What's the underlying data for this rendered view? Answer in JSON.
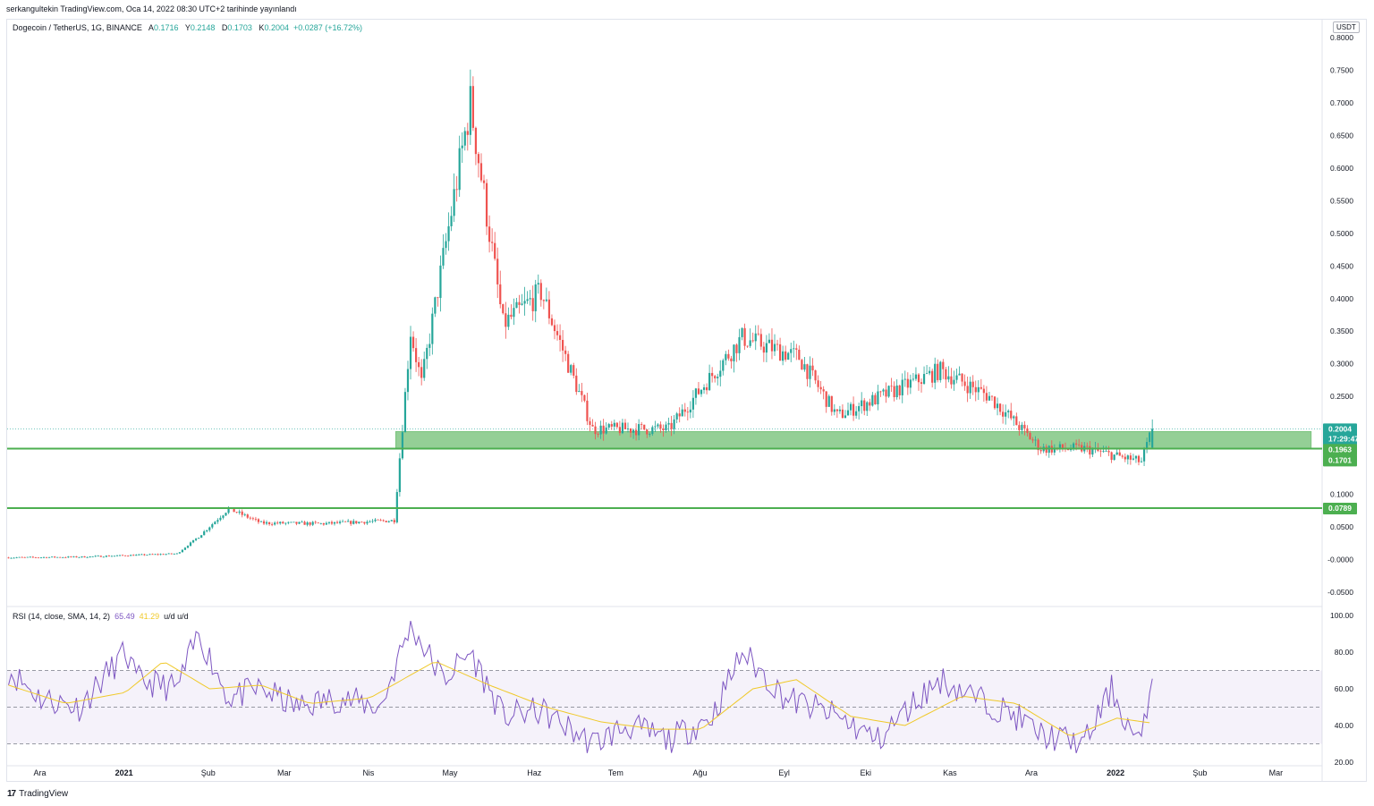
{
  "header": {
    "published": "serkangultekin TradingView.com, Oca 14, 2022 08:30 UTC+2 tarihinde yayınlandı",
    "symbol": "Dogecoin / TetherUS, 1G, BINANCE",
    "open_label": "A",
    "open": "0.1716",
    "high_label": "Y",
    "high": "0.2148",
    "low_label": "D",
    "low": "0.1703",
    "close_label": "K",
    "close": "0.2004",
    "change": "+0.0287 (+16.72%)"
  },
  "currency_button": "USDT",
  "rsi_legend": {
    "label": "RSI (14, close, SMA, 14, 2)",
    "rsi_value": "65.49",
    "sma_value": "41.29",
    "extra": "u/d  u/d"
  },
  "badges": {
    "price": "0.2004",
    "countdown": "17:29:47",
    "zone_top": "0.1963",
    "zone_bottom": "0.1701",
    "support": "0.0789"
  },
  "footer": {
    "brand": "TradingView",
    "logo_text": "17"
  },
  "colors": {
    "up": "#26a69a",
    "down": "#ef5350",
    "zone": "#81c784",
    "line": "#4caf50",
    "rsi": "#7e57c2",
    "sma": "#f0c929"
  },
  "chart_data": [
    {
      "type": "candlestick",
      "title": "Dogecoin / TetherUS, 1G, BINANCE",
      "ylim": [
        -0.05,
        0.8
      ],
      "y_ticks": [
        "0.8000",
        "0.7500",
        "0.7000",
        "0.6500",
        "0.6000",
        "0.5500",
        "0.5000",
        "0.4500",
        "0.4000",
        "0.3500",
        "0.3000",
        "0.2500",
        "0.1000",
        "0.0500",
        "-0.0000",
        "-0.0500"
      ],
      "y_tick_values": [
        0.8,
        0.75,
        0.7,
        0.65,
        0.6,
        0.55,
        0.5,
        0.45,
        0.4,
        0.35,
        0.3,
        0.25,
        0.1,
        0.05,
        0,
        -0.05
      ],
      "x_ticks": [
        "Ara",
        "2021",
        "Şub",
        "Mar",
        "Nis",
        "May",
        "Haz",
        "Tem",
        "Ağu",
        "Eyl",
        "Eki",
        "Kas",
        "Ara",
        "2022",
        "Şub",
        "Mar"
      ],
      "x_tick_dates": [
        "2020-12-01",
        "2021-01-01",
        "2021-02-01",
        "2021-03-01",
        "2021-04-01",
        "2021-05-01",
        "2021-06-01",
        "2021-07-01",
        "2021-08-01",
        "2021-09-01",
        "2021-10-01",
        "2021-11-01",
        "2021-12-01",
        "2022-01-01",
        "2022-02-01",
        "2022-03-01"
      ],
      "x_range": [
        "2020-11-19",
        "2022-03-18"
      ],
      "key_points": {
        "dates": [
          "2020-11-19",
          "2020-12-15",
          "2021-01-20",
          "2021-01-28",
          "2021-02-08",
          "2021-02-20",
          "2021-03-15",
          "2021-04-10",
          "2021-04-16",
          "2021-04-20",
          "2021-05-08",
          "2021-05-20",
          "2021-06-03",
          "2021-06-22",
          "2021-07-20",
          "2021-08-16",
          "2021-09-06",
          "2021-09-20",
          "2021-10-28",
          "2021-11-15",
          "2021-12-04",
          "2021-12-20",
          "2022-01-10",
          "2022-01-14"
        ],
        "close": [
          0.003,
          0.004,
          0.009,
          0.035,
          0.078,
          0.056,
          0.055,
          0.06,
          0.35,
          0.27,
          0.7,
          0.36,
          0.41,
          0.2,
          0.2,
          0.34,
          0.31,
          0.22,
          0.29,
          0.25,
          0.17,
          0.17,
          0.15,
          0.2004
        ]
      },
      "zones": [
        {
          "from": "2021-04-11",
          "to": "2022-03-14",
          "low": 0.1701,
          "high": 0.1963
        }
      ],
      "lines": [
        {
          "value": 0.1701
        },
        {
          "value": 0.0789
        }
      ],
      "last": {
        "open": 0.1716,
        "high": 0.2148,
        "low": 0.1703,
        "close": 0.2004
      }
    },
    {
      "type": "line",
      "title": "RSI (14, close, SMA, 14, 2)",
      "ylim": [
        20,
        100
      ],
      "y_ticks": [
        "100.00",
        "80.00",
        "60.00",
        "40.00",
        "20.00"
      ],
      "y_tick_values": [
        100,
        80,
        60,
        40,
        20
      ],
      "band": [
        30,
        70
      ],
      "series": [
        {
          "name": "RSI",
          "x": [
            "2020-11-19",
            "2020-12-01",
            "2020-12-15",
            "2021-01-01",
            "2021-01-05",
            "2021-01-20",
            "2021-01-28",
            "2021-02-08",
            "2021-02-20",
            "2021-03-05",
            "2021-03-20",
            "2021-04-05",
            "2021-04-16",
            "2021-04-28",
            "2021-05-08",
            "2021-05-20",
            "2021-06-03",
            "2021-06-22",
            "2021-07-05",
            "2021-07-20",
            "2021-08-05",
            "2021-08-16",
            "2021-09-01",
            "2021-09-20",
            "2021-10-05",
            "2021-10-20",
            "2021-10-28",
            "2021-11-10",
            "2021-11-25",
            "2021-12-04",
            "2021-12-20",
            "2021-12-30",
            "2022-01-05",
            "2022-01-10",
            "2022-01-14"
          ],
          "values": [
            70,
            55,
            50,
            80,
            65,
            60,
            90,
            55,
            60,
            50,
            55,
            50,
            95,
            65,
            80,
            45,
            48,
            30,
            40,
            32,
            45,
            80,
            55,
            45,
            32,
            55,
            65,
            55,
            45,
            35,
            30,
            60,
            40,
            30,
            65.49
          ]
        },
        {
          "name": "SMA",
          "x": [
            "2020-11-19",
            "2020-12-10",
            "2021-01-01",
            "2021-01-15",
            "2021-02-01",
            "2021-02-20",
            "2021-03-10",
            "2021-04-01",
            "2021-04-25",
            "2021-05-15",
            "2021-06-05",
            "2021-06-25",
            "2021-07-15",
            "2021-08-01",
            "2021-08-20",
            "2021-09-05",
            "2021-09-25",
            "2021-10-15",
            "2021-11-05",
            "2021-11-25",
            "2021-12-15",
            "2022-01-01",
            "2022-01-14"
          ],
          "values": [
            62,
            52,
            58,
            75,
            60,
            62,
            52,
            55,
            75,
            62,
            50,
            42,
            38,
            38,
            60,
            65,
            45,
            40,
            56,
            52,
            34,
            44,
            41.29
          ]
        }
      ]
    }
  ]
}
